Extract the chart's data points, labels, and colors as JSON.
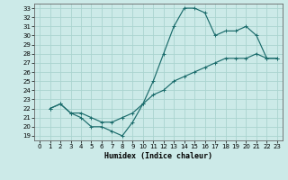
{
  "xlabel": "Humidex (Indice chaleur)",
  "xlim": [
    -0.5,
    23.5
  ],
  "ylim": [
    18.5,
    33.5
  ],
  "xticks": [
    0,
    1,
    2,
    3,
    4,
    5,
    6,
    7,
    8,
    9,
    10,
    11,
    12,
    13,
    14,
    15,
    16,
    17,
    18,
    19,
    20,
    21,
    22,
    23
  ],
  "yticks": [
    19,
    20,
    21,
    22,
    23,
    24,
    25,
    26,
    27,
    28,
    29,
    30,
    31,
    32,
    33
  ],
  "background_color": "#cceae8",
  "grid_color": "#aad4d0",
  "line_color": "#1a6b6b",
  "line1_x": [
    1,
    2,
    3,
    4,
    5,
    6,
    7,
    8,
    9,
    10,
    11,
    12,
    13,
    14,
    15,
    16,
    17,
    18,
    19,
    20,
    21,
    22,
    23
  ],
  "line1_y": [
    22,
    22.5,
    21.5,
    21,
    20,
    20,
    19.5,
    19,
    20.5,
    22.5,
    25,
    28,
    31,
    33,
    33,
    32.5,
    30,
    30.5,
    30.5,
    31,
    30,
    27.5,
    27.5
  ],
  "line2_x": [
    1,
    2,
    3,
    4,
    5,
    6,
    7,
    8,
    9,
    10,
    11,
    12,
    13,
    14,
    15,
    16,
    17,
    18,
    19,
    20,
    21,
    22,
    23
  ],
  "line2_y": [
    22,
    22.5,
    21.5,
    21.5,
    21,
    20.5,
    20.5,
    21,
    21.5,
    22.5,
    23.5,
    24,
    25,
    25.5,
    26,
    26.5,
    27,
    27.5,
    27.5,
    27.5,
    28,
    27.5,
    27.5
  ]
}
